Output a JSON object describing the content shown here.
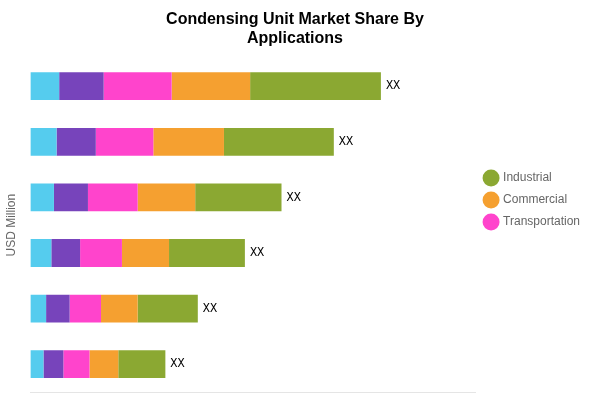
{
  "chart_data": {
    "type": "bar",
    "orientation": "horizontal",
    "stacked": true,
    "title": "Condensing Unit Market Share By\nApplications",
    "ylabel": "USD Million",
    "categories": [
      null,
      null,
      null,
      null,
      null,
      null
    ],
    "series": [
      {
        "name": null,
        "color": "#55CCEE",
        "values": [
          0.55,
          0.5,
          0.45,
          0.4,
          0.3,
          0.25
        ]
      },
      {
        "name": null,
        "color": "#7744BB",
        "values": [
          0.85,
          0.75,
          0.65,
          0.55,
          0.45,
          0.38
        ]
      },
      {
        "name": "Transportation",
        "color": "#FF44CC",
        "values": [
          1.3,
          1.1,
          0.95,
          0.8,
          0.6,
          0.5
        ]
      },
      {
        "name": "Commercial",
        "color": "#F5A030",
        "values": [
          1.5,
          1.35,
          1.1,
          0.9,
          0.7,
          0.55
        ]
      },
      {
        "name": "Industrial",
        "color": "#8BA832",
        "values": [
          2.5,
          2.1,
          1.65,
          1.45,
          1.15,
          0.9
        ]
      }
    ],
    "annotations": [
      "XX",
      "XX",
      "XX",
      "XX",
      "XX",
      "XX"
    ],
    "xlim": [
      0,
      8.5
    ],
    "tick_labels": false,
    "grid": false,
    "legend": "right"
  }
}
